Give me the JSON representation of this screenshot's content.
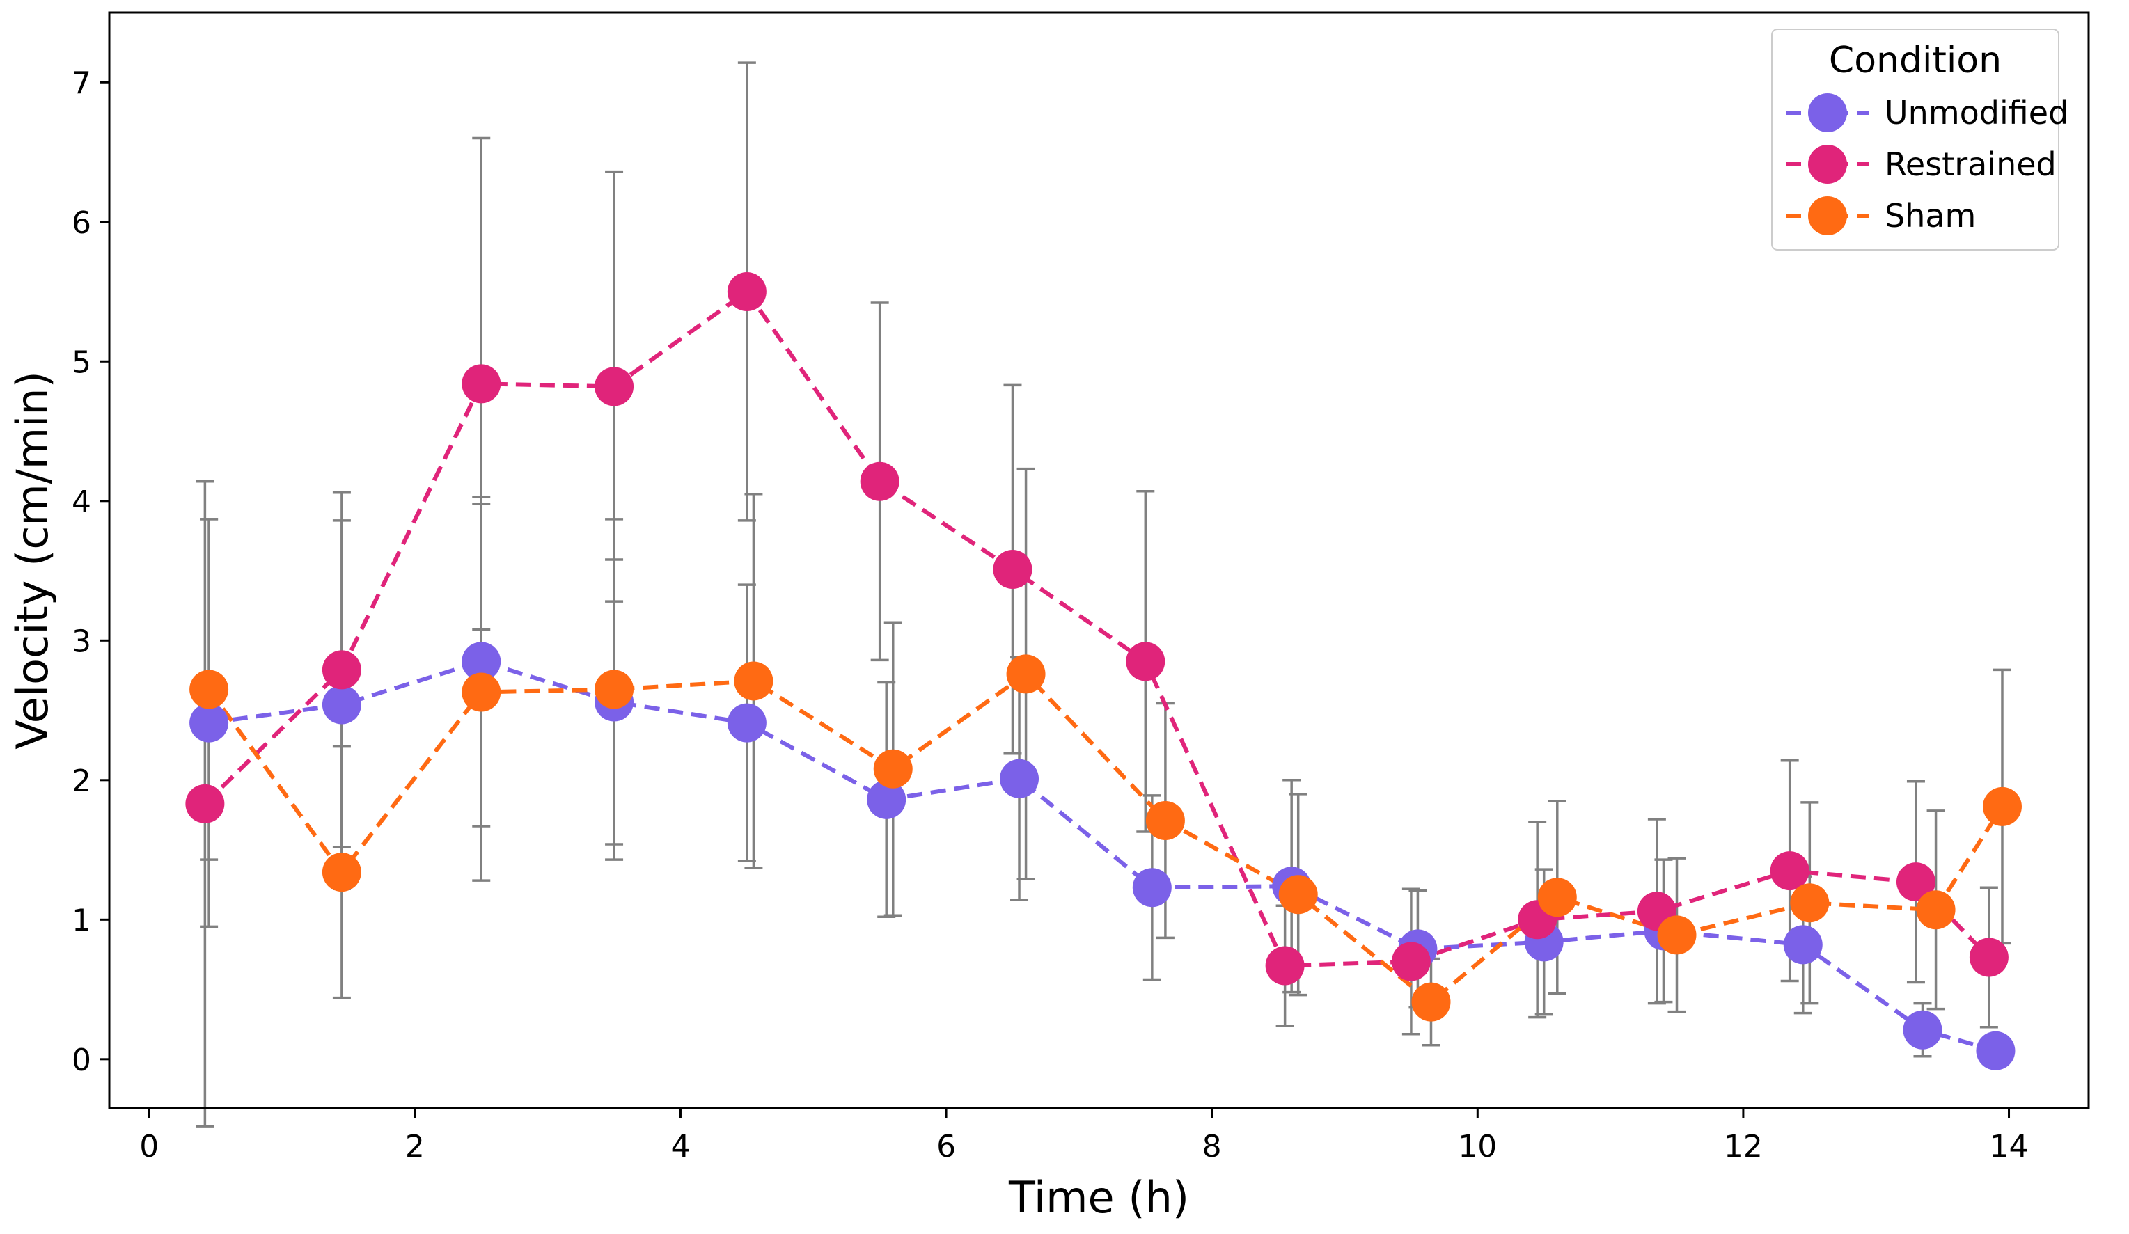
{
  "chart_data": {
    "type": "line",
    "title": "",
    "xlabel": "Time (h)",
    "ylabel": "Velocity (cm/min)",
    "xlim": [
      -0.3,
      14.6
    ],
    "ylim": [
      -0.35,
      7.5
    ],
    "xticks": [
      0,
      2,
      4,
      6,
      8,
      10,
      12,
      14
    ],
    "yticks": [
      0,
      1,
      2,
      3,
      4,
      5,
      6,
      7
    ],
    "grid": false,
    "legend": {
      "title": "Condition",
      "position": "top-right"
    },
    "series": [
      {
        "name": "Unmodified",
        "color": "#7B61E8",
        "x": [
          0.45,
          1.45,
          2.5,
          3.5,
          4.5,
          5.55,
          6.55,
          7.55,
          8.6,
          9.55,
          10.5,
          11.4,
          12.45,
          13.35,
          13.9
        ],
        "y": [
          2.41,
          2.54,
          2.85,
          2.56,
          2.41,
          1.86,
          2.01,
          1.23,
          1.24,
          0.79,
          0.84,
          0.92,
          0.82,
          0.21,
          0.06
        ],
        "err": [
          1.46,
          1.32,
          1.18,
          1.02,
          0.99,
          0.84,
          0.87,
          0.66,
          0.76,
          0.42,
          0.52,
          0.51,
          0.49,
          0.19,
          0.06
        ]
      },
      {
        "name": "Restrained",
        "color": "#E0247A",
        "x": [
          0.42,
          1.45,
          2.5,
          3.5,
          4.5,
          5.5,
          6.5,
          7.5,
          8.55,
          9.5,
          10.45,
          11.35,
          12.35,
          13.3,
          13.85
        ],
        "y": [
          1.83,
          2.79,
          4.84,
          4.82,
          5.5,
          4.14,
          3.51,
          2.85,
          0.67,
          0.7,
          1.0,
          1.06,
          1.35,
          1.27,
          0.73
        ],
        "err": [
          2.31,
          1.27,
          1.76,
          1.54,
          1.64,
          1.28,
          1.32,
          1.22,
          0.43,
          0.52,
          0.7,
          0.66,
          0.79,
          0.72,
          0.5
        ]
      },
      {
        "name": "Sham",
        "color": "#FF6A13",
        "x": [
          0.45,
          1.45,
          2.5,
          3.5,
          4.55,
          5.6,
          6.6,
          7.65,
          8.65,
          9.65,
          10.6,
          11.5,
          12.5,
          13.45,
          13.95
        ],
        "y": [
          2.65,
          1.34,
          2.63,
          2.65,
          2.71,
          2.08,
          2.76,
          1.71,
          1.18,
          0.41,
          1.16,
          0.89,
          1.12,
          1.07,
          1.81
        ],
        "err": [
          1.22,
          0.9,
          1.35,
          1.22,
          1.34,
          1.05,
          1.47,
          0.84,
          0.72,
          0.31,
          0.69,
          0.55,
          0.72,
          0.71,
          0.98
        ]
      }
    ]
  }
}
